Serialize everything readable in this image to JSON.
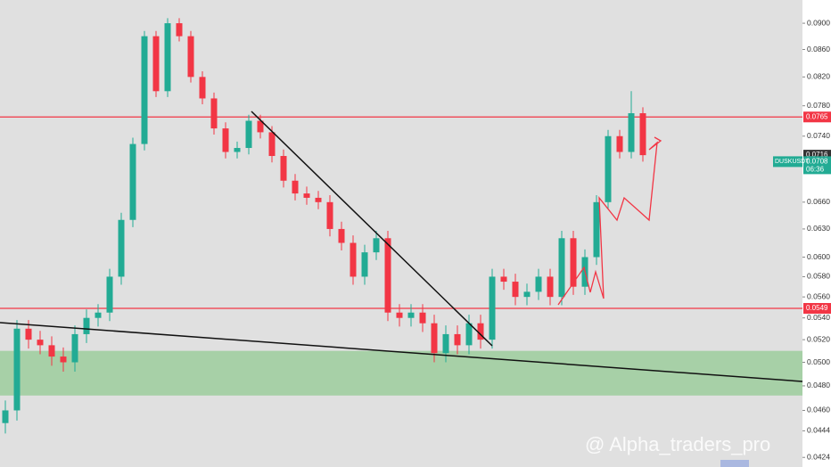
{
  "chart_data": {
    "type": "candlestick",
    "symbol": "DUSKUSDT",
    "log_scale": true,
    "ylim": [
      0.0417,
      0.0937
    ],
    "yticks": [
      {
        "value": 0.09,
        "label": "0.0900"
      },
      {
        "value": 0.086,
        "label": "0.0860"
      },
      {
        "value": 0.082,
        "label": "0.0820"
      },
      {
        "value": 0.078,
        "label": "0.0780"
      },
      {
        "value": 0.074,
        "label": "0.0740"
      },
      {
        "value": 0.066,
        "label": "0.0660"
      },
      {
        "value": 0.063,
        "label": "0.0630"
      },
      {
        "value": 0.06,
        "label": "0.0600"
      },
      {
        "value": 0.058,
        "label": "0.0580"
      },
      {
        "value": 0.056,
        "label": "0.0560"
      },
      {
        "value": 0.054,
        "label": "0.0540"
      },
      {
        "value": 0.052,
        "label": "0.0520"
      },
      {
        "value": 0.05,
        "label": "0.0500"
      },
      {
        "value": 0.048,
        "label": "0.0480"
      },
      {
        "value": 0.046,
        "label": "0.0460"
      },
      {
        "value": 0.0444,
        "label": "0.0444"
      },
      {
        "value": 0.0424,
        "label": "0.0424"
      }
    ],
    "up_color": "#22ab94",
    "down_color": "#f23645",
    "open": [
      0.045,
      0.046,
      0.053,
      0.052,
      0.0515,
      0.0505,
      0.05,
      0.0525,
      0.054,
      0.0545,
      0.058,
      0.064,
      0.073,
      0.088,
      0.08,
      0.09,
      0.088,
      0.082,
      0.079,
      0.075,
      0.072,
      0.0725,
      0.076,
      0.0745,
      0.0715,
      0.0685,
      0.067,
      0.0665,
      0.066,
      0.063,
      0.0615,
      0.058,
      0.0605,
      0.062,
      0.0545,
      0.054,
      0.0545,
      0.0535,
      0.0508,
      0.0525,
      0.0515,
      0.0535,
      0.052,
      0.058,
      0.0575,
      0.056,
      0.0565,
      0.058,
      0.056,
      0.062,
      0.057,
      0.06,
      0.066,
      0.074,
      0.072,
      0.077
    ],
    "high": [
      0.0468,
      0.0538,
      0.0538,
      0.0528,
      0.0523,
      0.0513,
      0.0533,
      0.0548,
      0.0553,
      0.0588,
      0.0648,
      0.0738,
      0.0888,
      0.0888,
      0.0908,
      0.0908,
      0.0888,
      0.0828,
      0.0798,
      0.0758,
      0.0733,
      0.0768,
      0.0768,
      0.0753,
      0.0723,
      0.0693,
      0.0678,
      0.0673,
      0.0668,
      0.0638,
      0.0623,
      0.0613,
      0.0628,
      0.0628,
      0.0553,
      0.0553,
      0.0553,
      0.0543,
      0.0533,
      0.0533,
      0.0543,
      0.0543,
      0.0588,
      0.0588,
      0.0583,
      0.0573,
      0.0588,
      0.0588,
      0.0628,
      0.0628,
      0.0608,
      0.0668,
      0.0748,
      0.0748,
      0.08,
      0.0778
    ],
    "low": [
      0.0442,
      0.0452,
      0.0512,
      0.0507,
      0.0497,
      0.0492,
      0.0492,
      0.0517,
      0.0532,
      0.0537,
      0.0572,
      0.0632,
      0.0722,
      0.0792,
      0.0792,
      0.0872,
      0.0812,
      0.0782,
      0.0742,
      0.0712,
      0.0712,
      0.0717,
      0.0737,
      0.0707,
      0.0677,
      0.0662,
      0.0657,
      0.0652,
      0.0622,
      0.0607,
      0.0572,
      0.0572,
      0.0597,
      0.0537,
      0.0532,
      0.0532,
      0.0527,
      0.05,
      0.05,
      0.0507,
      0.0507,
      0.0512,
      0.0512,
      0.0567,
      0.0552,
      0.0552,
      0.0557,
      0.0552,
      0.0552,
      0.0562,
      0.0562,
      0.0592,
      0.0652,
      0.0712,
      0.0712,
      0.0708
    ],
    "close": [
      0.046,
      0.053,
      0.052,
      0.0515,
      0.0505,
      0.05,
      0.0525,
      0.054,
      0.0545,
      0.058,
      0.064,
      0.073,
      0.088,
      0.08,
      0.09,
      0.088,
      0.082,
      0.079,
      0.075,
      0.072,
      0.0725,
      0.076,
      0.0745,
      0.0715,
      0.0685,
      0.067,
      0.0665,
      0.066,
      0.063,
      0.0615,
      0.058,
      0.0605,
      0.062,
      0.0545,
      0.054,
      0.0545,
      0.0535,
      0.0508,
      0.0525,
      0.0515,
      0.0535,
      0.052,
      0.058,
      0.0575,
      0.056,
      0.0565,
      0.058,
      0.056,
      0.062,
      0.057,
      0.06,
      0.066,
      0.074,
      0.072,
      0.077,
      0.0716
    ],
    "levels": [
      {
        "value": 0.0765,
        "label": "0.0765",
        "color": "#f23645"
      },
      {
        "value": 0.0549,
        "label": "0.0549",
        "color": "#f23645"
      }
    ],
    "zone": {
      "from": 0.0472,
      "to": 0.051,
      "color": "#9ccc9c"
    },
    "last_price": {
      "value": 0.0716,
      "label": "0.0716"
    },
    "mark_price": {
      "value": 0.0708,
      "label": "0.0708",
      "countdown": "06:36"
    },
    "watermark": "@ Alpha_traders_pro"
  }
}
